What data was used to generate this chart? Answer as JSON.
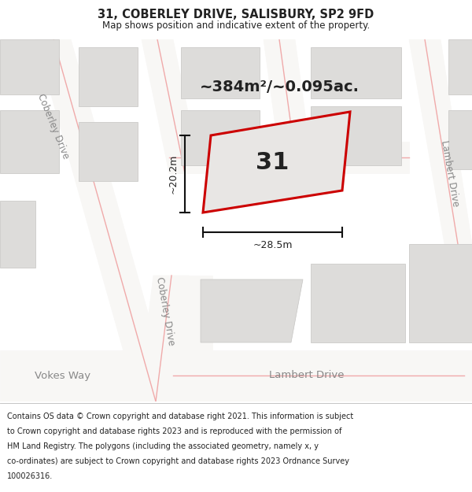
{
  "title": "31, COBERLEY DRIVE, SALISBURY, SP2 9FD",
  "subtitle": "Map shows position and indicative extent of the property.",
  "area_label": "~384m²/~0.095ac.",
  "plot_number": "31",
  "dim_width": "~28.5m",
  "dim_height": "~20.2m",
  "map_bg": "#eeede8",
  "road_color": "#f8f7f5",
  "building_color": "#dddcda",
  "building_outline": "#c5c4c2",
  "road_line_color": "#f0aaaa",
  "plot_fill": "#e8e6e4",
  "plot_outline": "#cc0000",
  "dim_line_color": "#111111",
  "text_color": "#222222",
  "road_label_color": "#888888",
  "footer_lines": [
    "Contains OS data © Crown copyright and database right 2021. This information is subject",
    "to Crown copyright and database rights 2023 and is reproduced with the permission of",
    "HM Land Registry. The polygons (including the associated geometry, namely x, y",
    "co-ordinates) are subject to Crown copyright and database rights 2023 Ordnance Survey",
    "100026316."
  ],
  "title_fontsize": 10.5,
  "subtitle_fontsize": 8.5,
  "area_fontsize": 14,
  "plot_num_fontsize": 22,
  "dim_fontsize": 9,
  "road_label_fontsize": 8.5,
  "footer_fontsize": 7.0
}
